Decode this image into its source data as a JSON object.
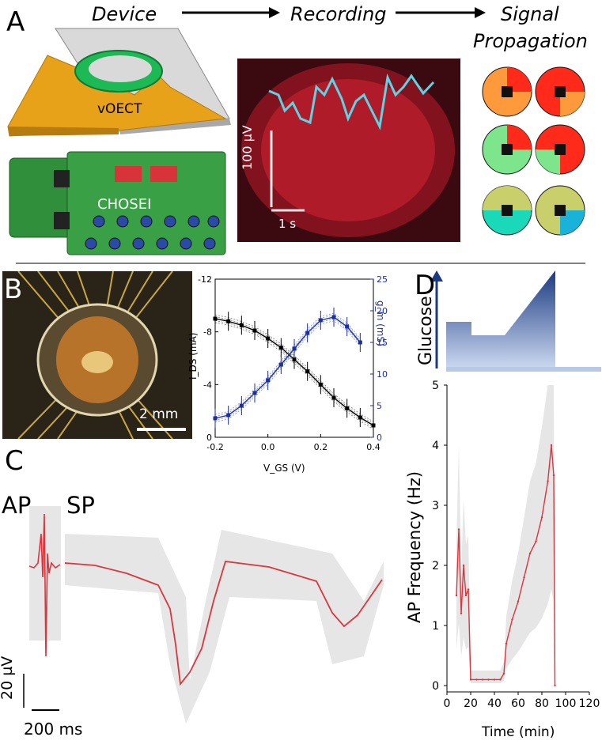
{
  "panel_labels": {
    "a": "A",
    "b": "B",
    "c": "C",
    "d": "D"
  },
  "flow": {
    "step1": "Device",
    "step2": "Recording",
    "step3a": "Signal",
    "step3b": "Propagation"
  },
  "device": {
    "chip_label": "vOECT",
    "board_label": "CHOSEI"
  },
  "recording": {
    "scalebar_v": "100 µV",
    "scalebar_t": "1 s"
  },
  "panel_b": {
    "scalebar": "2 mm"
  },
  "panel_c": {
    "ap_label": "AP",
    "sp_label": "SP",
    "scalebar_v": "20 µV",
    "scalebar_t": "200 ms"
  },
  "panel_d": {
    "glucose_label": "Glucose"
  },
  "colors": {
    "accent_blue": "#1a2fa0",
    "trace_red": "#d9363e",
    "chip_gold": "#e8a21a",
    "ring_green": "#1db954"
  },
  "chart_data": [
    {
      "type": "line",
      "title": "",
      "xlabel": "V_GS (V)",
      "ylabel": "I_DS (mA)",
      "y2label": "g_m (mS)",
      "xlim": [
        -0.2,
        0.4
      ],
      "ylim": [
        0,
        -12
      ],
      "y2lim": [
        0,
        25
      ],
      "x_ticks": [
        "-0.2",
        "0.0",
        "0.2",
        "0.4"
      ],
      "y_ticks": [
        "-12",
        "-8",
        "-4",
        "0"
      ],
      "y2_ticks": [
        "0",
        "5",
        "10",
        "15",
        "20",
        "25"
      ],
      "series": [
        {
          "axis": "left",
          "color": "#000000",
          "x": [
            -0.2,
            -0.15,
            -0.1,
            -0.05,
            0.0,
            0.05,
            0.1,
            0.15,
            0.2,
            0.25,
            0.3,
            0.35,
            0.4
          ],
          "values": [
            -9.0,
            -8.8,
            -8.5,
            -8.1,
            -7.5,
            -6.8,
            -5.9,
            -5.0,
            -4.0,
            -3.0,
            -2.2,
            -1.5,
            -0.9
          ]
        },
        {
          "axis": "right",
          "color": "#1a2fa0",
          "x": [
            -0.2,
            -0.15,
            -0.1,
            -0.05,
            0.0,
            0.05,
            0.1,
            0.15,
            0.2,
            0.25,
            0.3,
            0.35
          ],
          "values": [
            3.0,
            3.5,
            5.0,
            7.0,
            9.0,
            11.5,
            14.0,
            16.5,
            18.5,
            19.0,
            17.5,
            15.0
          ]
        }
      ]
    },
    {
      "type": "line",
      "title": "",
      "xlabel": "Time (min)",
      "ylabel": "AP Frequency (Hz)",
      "xlim": [
        0,
        120
      ],
      "ylim": [
        0,
        5
      ],
      "x_ticks": [
        "0",
        "20",
        "40",
        "60",
        "80",
        "100",
        "120"
      ],
      "y_ticks": [
        "0",
        "1",
        "2",
        "3",
        "4",
        "5"
      ],
      "series": [
        {
          "color": "#d9363e",
          "x": [
            8,
            10,
            12,
            14,
            16,
            18,
            20,
            25,
            30,
            35,
            40,
            45,
            48,
            50,
            55,
            60,
            65,
            70,
            75,
            80,
            85,
            88,
            90,
            91
          ],
          "values": [
            1.5,
            2.6,
            1.2,
            2.0,
            1.5,
            1.6,
            0.1,
            0.1,
            0.1,
            0.1,
            0.1,
            0.1,
            0.2,
            0.7,
            1.1,
            1.4,
            1.8,
            2.2,
            2.4,
            2.8,
            3.4,
            4.0,
            3.5,
            0.0
          ]
        }
      ]
    }
  ]
}
